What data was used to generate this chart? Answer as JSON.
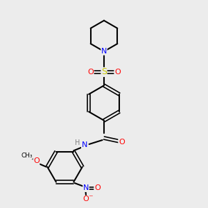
{
  "background_color": "#ececec",
  "bond_color": "#000000",
  "atom_colors": {
    "N": "#0000ff",
    "O": "#ff0000",
    "S": "#cccc00",
    "C": "#000000",
    "H": "#808080"
  },
  "title": "",
  "figsize": [
    3.0,
    3.0
  ],
  "dpi": 100
}
